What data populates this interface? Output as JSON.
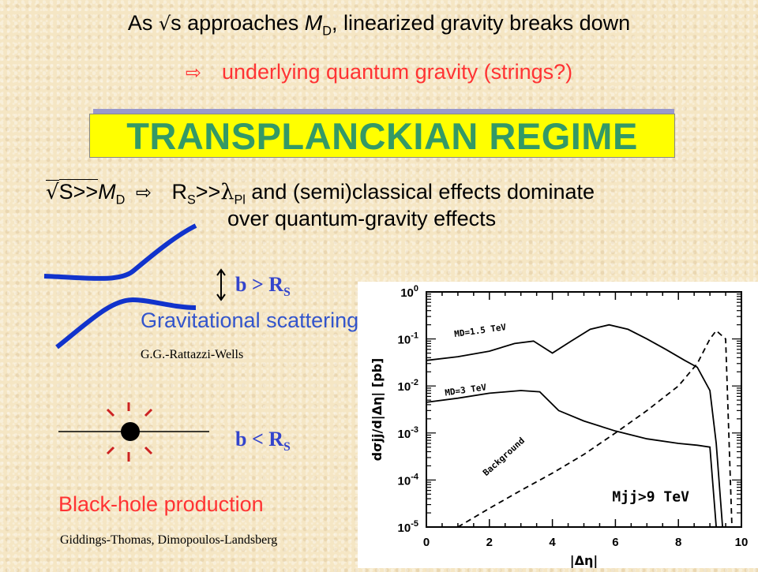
{
  "header": {
    "line1_prefix": "As ",
    "sqrt": "√",
    "line1_s": "s approaches ",
    "line1_M": "M",
    "line1_sub": "D",
    "line1_rest": ", linearized gravity breaks down",
    "line2_arrow": "⇨",
    "line2": "underlying quantum gravity (strings?)"
  },
  "title": "TRANSPLANCKIAN REGIME",
  "condition": {
    "sqrt": "√",
    "S": "S>>",
    "M": "M",
    "Msub": "D",
    "arrow": "⇨",
    "R": "R",
    "Rsub": "S",
    "gg": ">>",
    "lambda": "λ",
    "lsub": "Pl",
    "rest": " and (semi)classical effects dominate",
    "line2": "over quantum-gravity effects"
  },
  "scattering": {
    "b_label": "b > R",
    "b_sub": "S",
    "title": "Gravitational scattering",
    "ref": "G.G.-Rattazzi-Wells"
  },
  "blackhole": {
    "b_label": "b < R",
    "b_sub": "S",
    "title": "Black-hole production",
    "ref": "Giddings-Thomas, Dimopoulos-Landsberg"
  },
  "chart_data": {
    "type": "line",
    "xlabel": "|Δη|",
    "ylabel": "dσjj/d|Δη| [pb]",
    "log_y": true,
    "xlim": [
      0,
      10
    ],
    "ylim": [
      1e-05,
      1
    ],
    "x_ticks": [
      "0",
      "2",
      "4",
      "6",
      "8",
      "10"
    ],
    "y_ticks": [
      "10^0",
      "10^-1",
      "10^-2",
      "10^-3",
      "10^-4",
      "10^-5"
    ],
    "annotation": "Mjj>9 TeV",
    "series": [
      {
        "name": "MD=1.5 TeV",
        "style": "solid",
        "x": [
          0,
          1,
          2,
          2.8,
          3.4,
          4.0,
          4.6,
          5.2,
          5.8,
          6.4,
          7.0,
          7.6,
          8.2,
          8.6,
          9.0,
          9.2,
          9.4
        ],
        "y": [
          0.035,
          0.042,
          0.055,
          0.08,
          0.09,
          0.05,
          0.09,
          0.16,
          0.2,
          0.16,
          0.1,
          0.06,
          0.035,
          0.025,
          0.008,
          0.0006,
          1e-05
        ]
      },
      {
        "name": "MD=3 TeV",
        "style": "solid",
        "x": [
          0,
          1,
          2,
          3,
          3.6,
          4.2,
          5,
          6,
          7,
          8,
          8.6,
          9.0,
          9.2
        ],
        "y": [
          0.0045,
          0.0055,
          0.007,
          0.008,
          0.0075,
          0.003,
          0.0018,
          0.0011,
          0.00075,
          0.0006,
          0.00055,
          0.0005,
          1e-05
        ]
      },
      {
        "name": "Background",
        "style": "dashed",
        "x": [
          1,
          2,
          3,
          4,
          5,
          6,
          7,
          8,
          8.6,
          9.0,
          9.2,
          9.5,
          9.7
        ],
        "y": [
          1e-05,
          2.5e-05,
          6e-05,
          0.00014,
          0.00035,
          0.001,
          0.003,
          0.01,
          0.03,
          0.1,
          0.15,
          0.1,
          1e-05
        ]
      }
    ]
  }
}
